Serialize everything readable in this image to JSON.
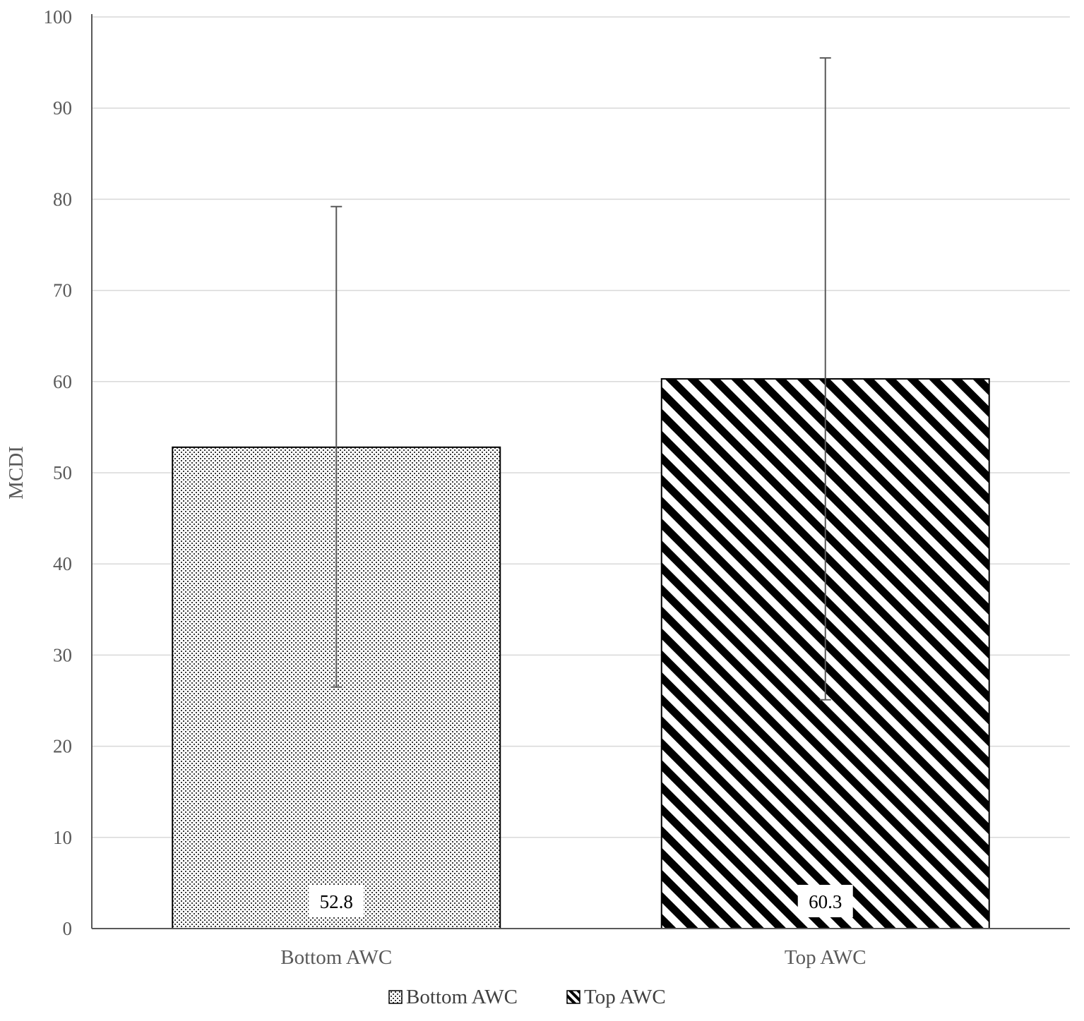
{
  "chart_data": {
    "type": "bar",
    "title": "",
    "xlabel": "",
    "ylabel": "MCDI",
    "ylim": [
      0,
      100
    ],
    "yticks": [
      0,
      10,
      20,
      30,
      40,
      50,
      60,
      70,
      80,
      90,
      100
    ],
    "grid": true,
    "legend_position": "bottom",
    "categories": [
      "Bottom AWC",
      "Top AWC"
    ],
    "values": [
      52.8,
      60.3
    ],
    "data_labels": [
      "52.8",
      "60.3"
    ],
    "error_bars": [
      {
        "low": 26.5,
        "high": 79.2
      },
      {
        "low": 25.1,
        "high": 95.5
      }
    ],
    "legend": [
      {
        "name": "Bottom AWC",
        "pattern": "dots"
      },
      {
        "name": "Top AWC",
        "pattern": "diagonal-stripes"
      }
    ],
    "colors": {
      "bar_fill": "#000000",
      "bar_background": "#ffffff",
      "grid": "#d9d9d9",
      "axis": "#595959"
    }
  }
}
